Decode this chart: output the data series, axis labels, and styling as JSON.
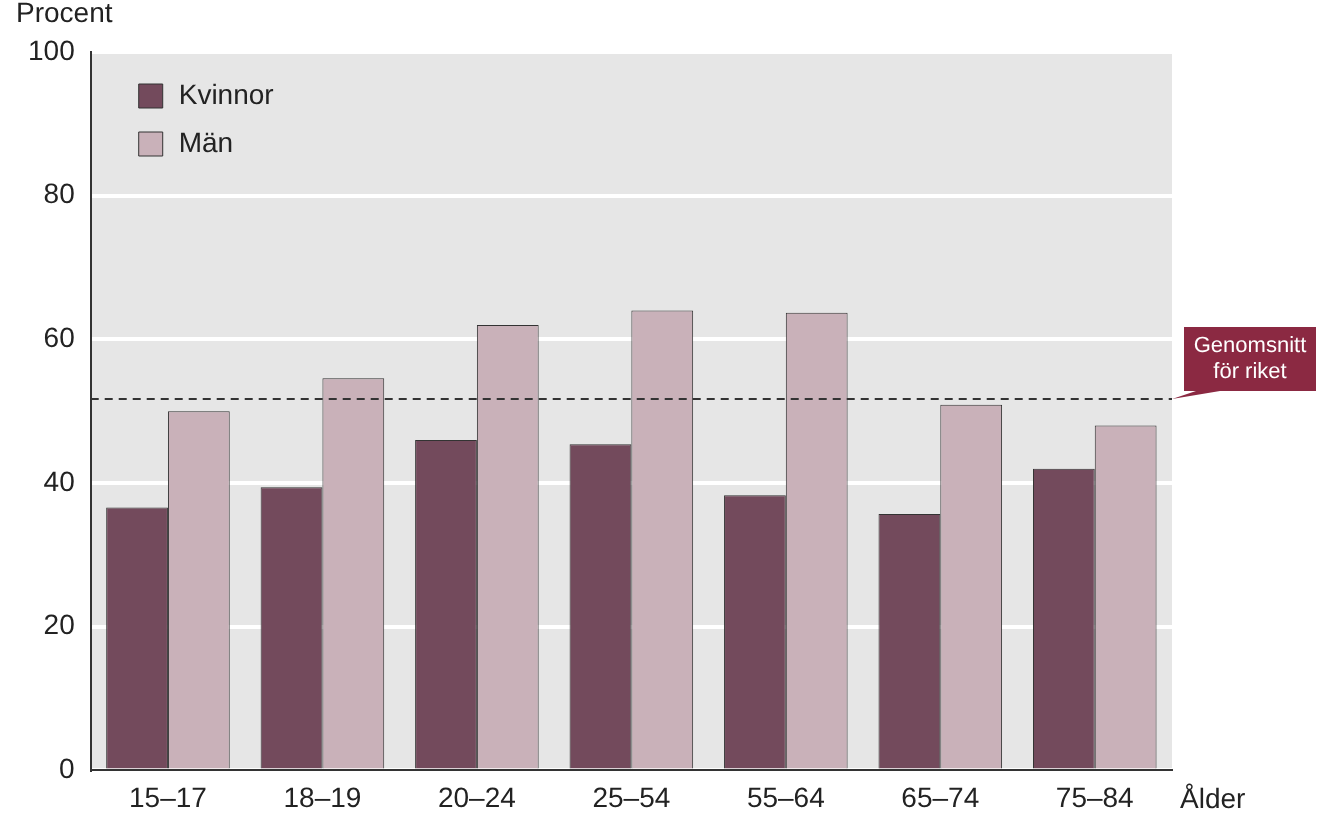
{
  "chart_data": {
    "type": "bar",
    "ylabel": "Procent",
    "xlabel": "Ålder",
    "categories": [
      "15–17",
      "18–19",
      "20–24",
      "25–54",
      "55–64",
      "65–74",
      "75–84"
    ],
    "series": [
      {
        "name": "Kvinnor",
        "color": "#734a5c",
        "values": [
          36.6,
          39.4,
          46,
          45.4,
          38.3,
          35.7,
          42
        ]
      },
      {
        "name": "Män",
        "color": "#c9b1b9",
        "values": [
          50,
          54.6,
          62,
          64,
          63.7,
          50.9,
          48
        ]
      }
    ],
    "ylim": [
      0,
      100
    ],
    "yticks": [
      0,
      20,
      40,
      60,
      80,
      100
    ],
    "grid": "y",
    "legend": "top left",
    "ref_lines": [
      {
        "axis": "y",
        "value": 51.7,
        "label": "Genomsnitt för riket",
        "line_style": "dashed"
      }
    ]
  }
}
